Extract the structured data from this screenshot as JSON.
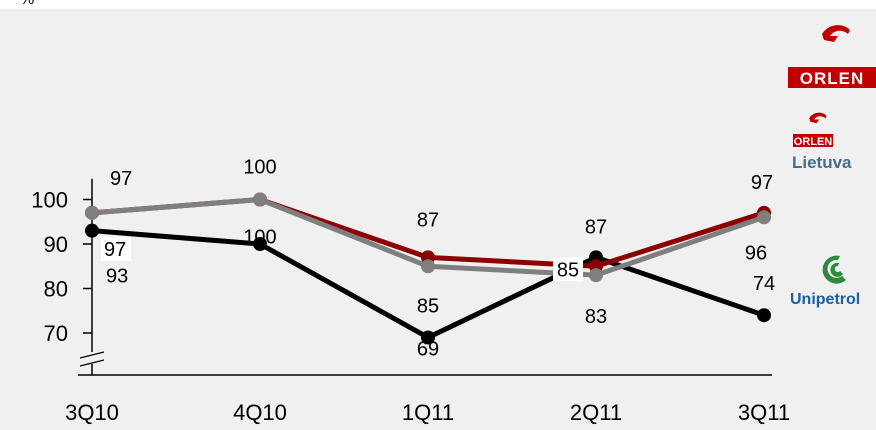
{
  "chart_data": {
    "type": "line",
    "unit_label": "%",
    "categories": [
      "3Q10",
      "4Q10",
      "1Q11",
      "2Q11",
      "3Q11"
    ],
    "y_ticks": [
      70,
      80,
      90,
      100
    ],
    "ylim": [
      66,
      106
    ],
    "grid": false,
    "axis_break": true,
    "legend": "right",
    "series": [
      {
        "name": "ORLEN",
        "color": "#8b0000",
        "values": [
          97,
          100,
          87,
          85,
          97
        ]
      },
      {
        "name": "ORLEN Lietuva",
        "color": "#7f7f7f",
        "values": [
          97,
          100,
          85,
          83,
          96
        ]
      },
      {
        "name": "Unipetrol",
        "color": "#000000",
        "values": [
          93,
          90,
          69,
          87,
          74
        ]
      }
    ],
    "data_labels": {
      "ORLEN": [
        "97",
        "100",
        "87",
        "85",
        "97"
      ],
      "ORLEN Lietuva": [
        "97",
        "100",
        "85",
        "83",
        "96"
      ],
      "Unipetrol": [
        "93",
        "90",
        "69",
        "87",
        "74"
      ]
    }
  },
  "legend": {
    "orlen": {
      "brand": "ORLEN",
      "icon": "orlen-eagle-icon",
      "badge_color": "#c00000"
    },
    "lietuva": {
      "brand": "ORLEN",
      "sub": "Lietuva",
      "icon": "orlen-eagle-icon",
      "badge_color": "#c00000",
      "sub_color": "#4a6b8a"
    },
    "unipetrol": {
      "brand": "Unipetrol",
      "icon": "unipetrol-logo-icon",
      "color": "#1a5fa8",
      "mark_color": "#2e8b3d"
    }
  }
}
